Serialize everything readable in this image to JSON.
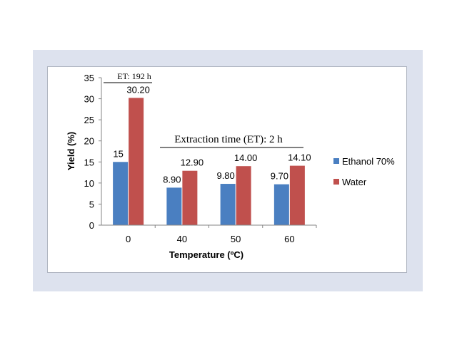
{
  "chart_data": {
    "type": "bar",
    "categories": [
      "0",
      "40",
      "50",
      "60"
    ],
    "series": [
      {
        "name": "Ethanol 70%",
        "values": [
          15,
          8.9,
          9.8,
          9.7
        ],
        "labels": [
          "15",
          "8.90",
          "9.80",
          "9.70"
        ],
        "color": "#4a7fc1"
      },
      {
        "name": "Water",
        "values": [
          30.2,
          12.9,
          14.0,
          14.1
        ],
        "labels": [
          "30.20",
          "12.90",
          "14.00",
          "14.10"
        ],
        "color": "#c0504d"
      }
    ],
    "title": "",
    "xlabel": "Temperature (ºC)",
    "ylabel": "Yield (%)",
    "ylim": [
      0,
      35
    ],
    "yticks": [
      "0",
      "5",
      "10",
      "15",
      "20",
      "25",
      "30",
      "35"
    ],
    "grid": false,
    "legend_position": "right",
    "annotations": [
      {
        "text": "ET: 192 h",
        "applies_to": [
          "0"
        ]
      },
      {
        "text": "Extraction time (ET): 2 h",
        "applies_to": [
          "40",
          "50",
          "60"
        ]
      }
    ]
  }
}
